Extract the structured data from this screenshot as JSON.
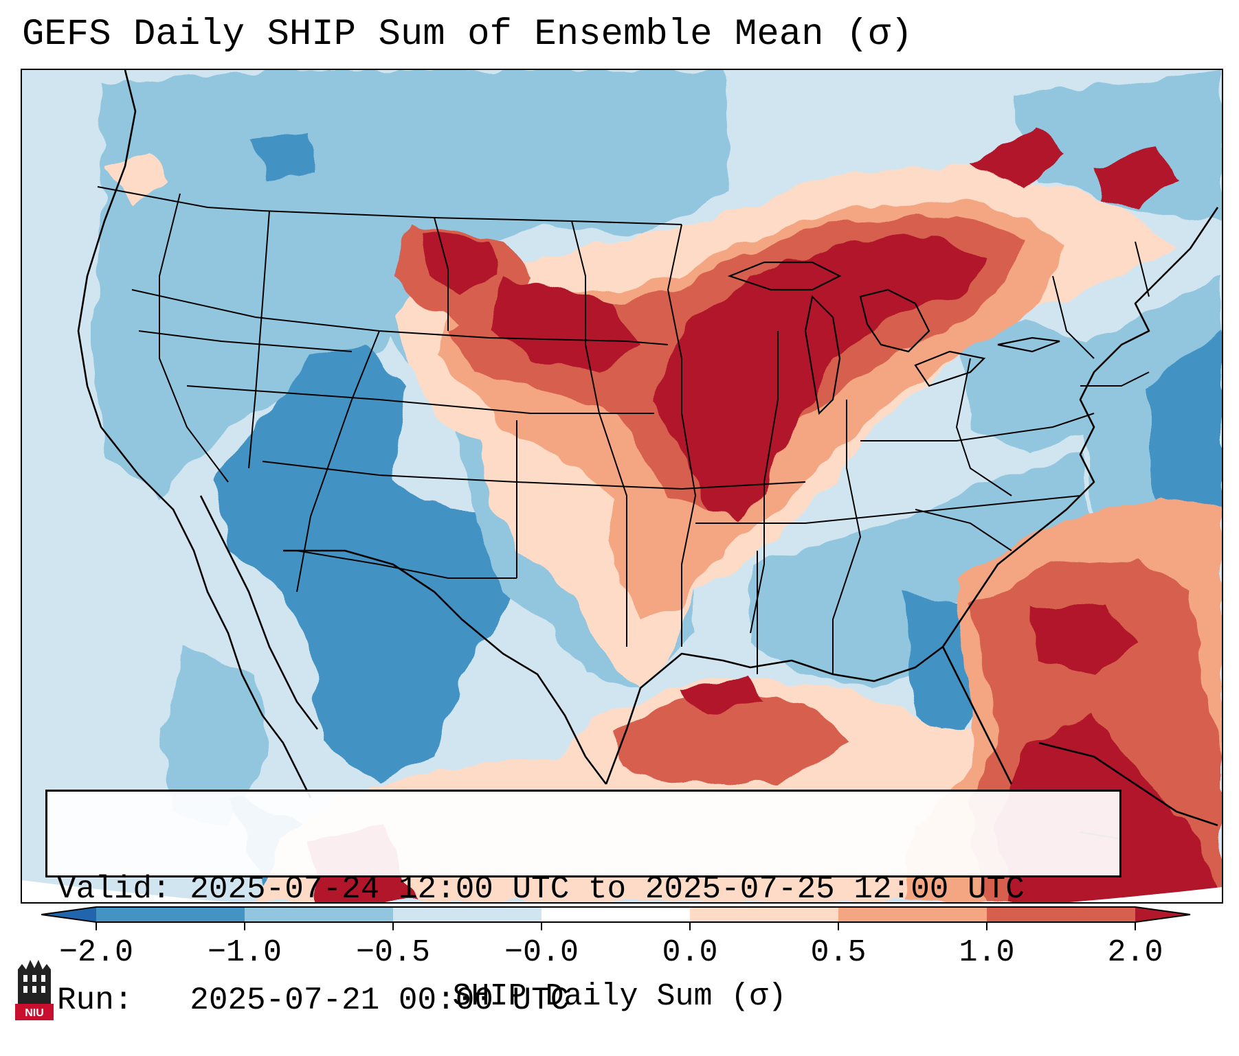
{
  "title": "GEFS Daily SHIP Sum of Ensemble Mean (σ)",
  "info": {
    "valid_line": "Valid: 2025-07-24 12:00 UTC to 2025-07-25 12:00 UTC",
    "run_line": "Run:   2025-07-21 00:00 UTC"
  },
  "colorbar": {
    "label": "SHIP Daily Sum (σ)",
    "ticks": [
      "−2.0",
      "−1.0",
      "−0.5",
      "−0.0",
      "0.0",
      "0.5",
      "1.0",
      "2.0"
    ],
    "colors": [
      "#4393c3",
      "#92c5de",
      "#d1e5f0",
      "#ffffff",
      "#fddbc7",
      "#f4a582",
      "#d6604d",
      "#b2182b"
    ],
    "under_color": "#2166ac",
    "over_color": "#b2182b"
  },
  "logo": {
    "text": "NIU",
    "name": "niu-logo"
  },
  "colors": {
    "c_m2": "#4393c3",
    "c_m1": "#92c5de",
    "c_m05": "#d1e5f0",
    "c_p0": "#fddbc7",
    "c_p05": "#f4a582",
    "c_p1": "#d6604d",
    "c_p2": "#b2182b"
  }
}
